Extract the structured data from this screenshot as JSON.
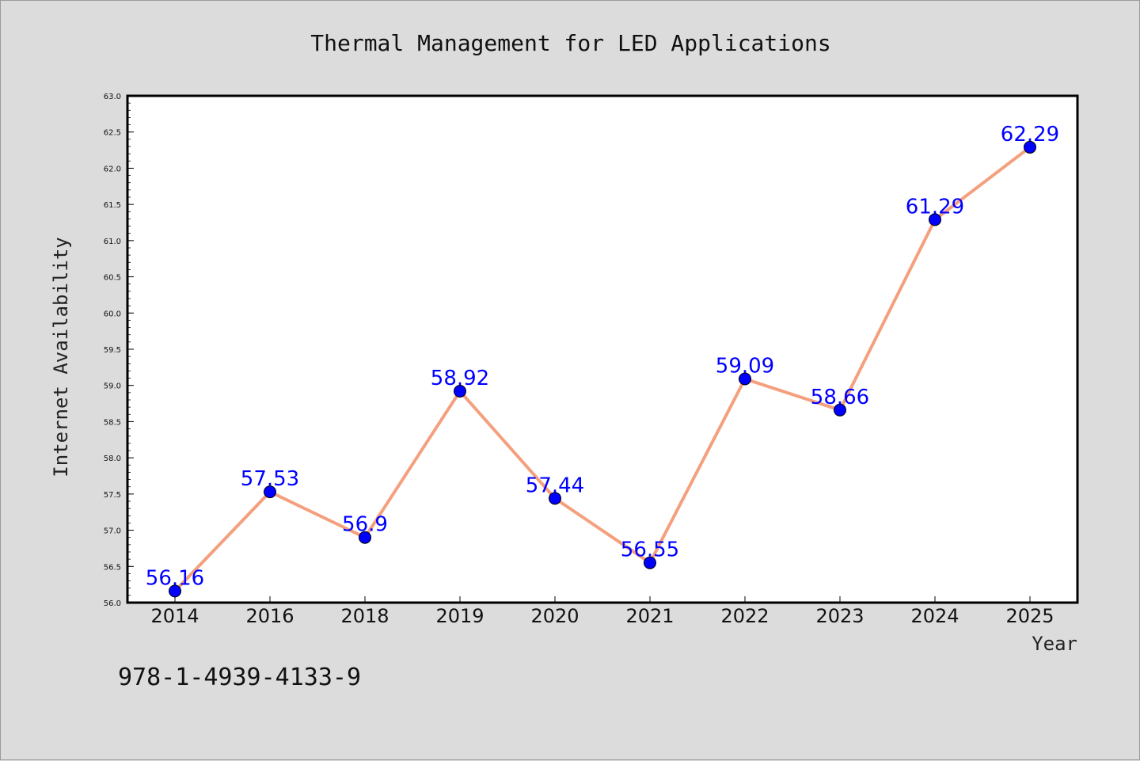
{
  "chart_data": {
    "type": "line",
    "title": "Thermal Management for LED Applications",
    "xlabel": "Year",
    "ylabel": "Internet Availability",
    "categories": [
      "2014",
      "2016",
      "2018",
      "2019",
      "2020",
      "2021",
      "2022",
      "2023",
      "2024",
      "2025"
    ],
    "series": [
      {
        "values": [
          56.16,
          57.53,
          56.9,
          58.92,
          57.44,
          56.55,
          59.09,
          58.66,
          61.29,
          62.29
        ],
        "data_labels": [
          "56.16",
          "57.53",
          "56.9",
          "58.92",
          "57.44",
          "56.55",
          "59.09",
          "58.66",
          "61.29",
          "62.29"
        ],
        "line_color": "#f4a07e",
        "marker_color": "#0000ff"
      }
    ],
    "ylim": [
      56.0,
      63.0
    ],
    "yticks": [
      "56.0",
      "56.5",
      "57.0",
      "57.5",
      "58.0",
      "58.5",
      "59.0",
      "59.5",
      "60.0",
      "60.5",
      "61.0",
      "61.5",
      "62.0",
      "62.5",
      "63.0"
    ],
    "grid": false,
    "annotation": "978-1-4939-4133-9"
  },
  "colors": {
    "background": "#dcdcdc",
    "plot_background": "#ffffff",
    "line": "#f4a07e",
    "marker": "#0000ff",
    "data_label": "#0000ff"
  }
}
